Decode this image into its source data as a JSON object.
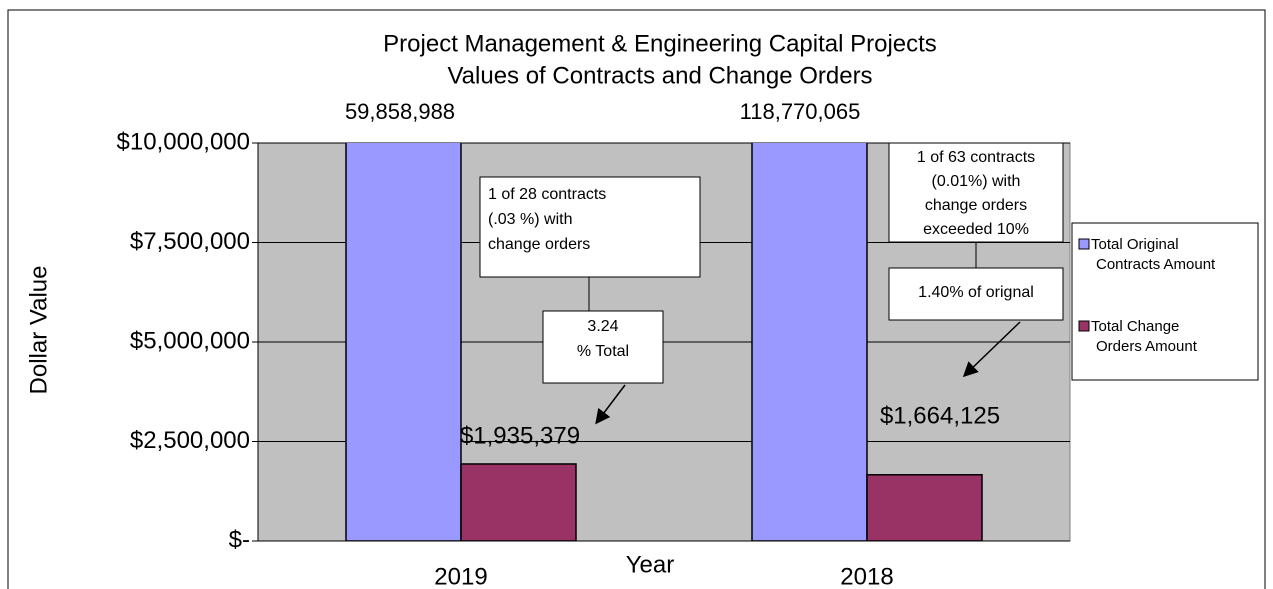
{
  "chart_data": {
    "type": "bar",
    "title": [
      "Project Management & Engineering Capital Projects",
      "Values of Contracts and Change Orders"
    ],
    "xlabel": "Year",
    "ylabel": "Dollar Value",
    "categories": [
      "2019",
      "2018"
    ],
    "series": [
      {
        "name": [
          "Total Original",
          "Contracts Amount"
        ],
        "color": "#9999ff",
        "values": [
          59858988,
          118770065
        ],
        "value_labels": [
          "59,858,988",
          "118,770,065"
        ]
      },
      {
        "name": [
          "Total Change",
          "Orders Amount"
        ],
        "color": "#993366",
        "values": [
          1935379,
          1664125
        ],
        "value_labels": [
          "$1,935,379",
          "$1,664,125"
        ]
      }
    ],
    "ylim": [
      0,
      10000000
    ],
    "yticks": [
      {
        "value": 0,
        "label": "$-"
      },
      {
        "value": 2500000,
        "label": "$2,500,000"
      },
      {
        "value": 5000000,
        "label": "$5,000,000"
      },
      {
        "value": 7500000,
        "label": "$7,500,000"
      },
      {
        "value": 10000000,
        "label": "$10,000,000"
      }
    ],
    "grid": true,
    "legend": "right",
    "annotations": [
      {
        "lines": [
          "1 of 28 contracts",
          "(.03 %)  with",
          "change orders"
        ]
      },
      {
        "lines": [
          "3.24",
          "% Total"
        ]
      },
      {
        "lines": [
          "1 of 63 contracts",
          "(0.01%) with",
          "change orders",
          "exceeded 10%"
        ]
      },
      {
        "lines": [
          "1.40% of orignal"
        ]
      }
    ]
  }
}
